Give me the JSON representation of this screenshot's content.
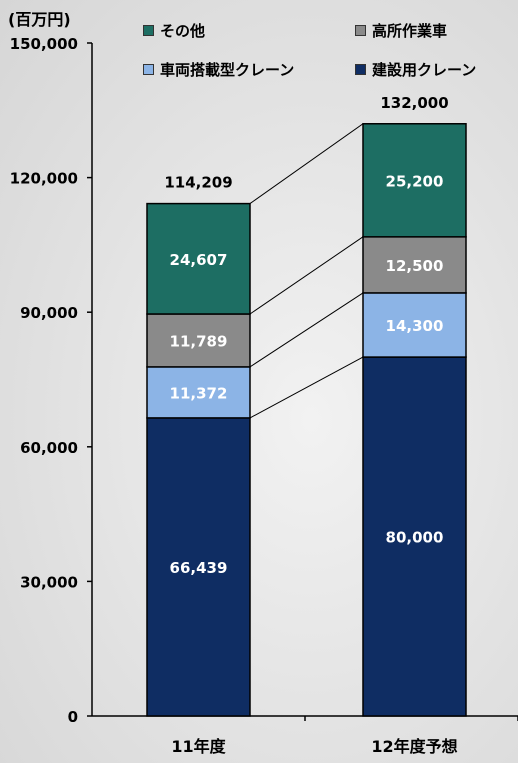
{
  "chart_data": {
    "type": "bar",
    "stacked": true,
    "unit_label": "(百万円)",
    "categories": [
      "11年度",
      "12年度予想"
    ],
    "totals": [
      "114,209",
      "132,000"
    ],
    "ylim": [
      0,
      150000
    ],
    "yticks": [
      "0",
      "30,000",
      "60,000",
      "90,000",
      "120,000",
      "150,000"
    ],
    "ytick_values": [
      0,
      30000,
      60000,
      90000,
      120000,
      150000
    ],
    "legend_position": "top",
    "series": [
      {
        "name": "建設用クレーン",
        "color": "#0f2d63",
        "values": [
          66439,
          80000
        ],
        "labels": [
          "66,439",
          "80,000"
        ]
      },
      {
        "name": "車両搭載型クレーン",
        "color": "#8cb4e6",
        "values": [
          11372,
          14300
        ],
        "labels": [
          "11,372",
          "14,300"
        ]
      },
      {
        "name": "高所作業車",
        "color": "#8a8a8a",
        "values": [
          11789,
          12500
        ],
        "labels": [
          "11,789",
          "12,500"
        ]
      },
      {
        "name": "その他",
        "color": "#1d6e63",
        "values": [
          24607,
          25200
        ],
        "labels": [
          "24,607",
          "25,200"
        ]
      }
    ],
    "legend_order": [
      3,
      2,
      1,
      0
    ]
  }
}
